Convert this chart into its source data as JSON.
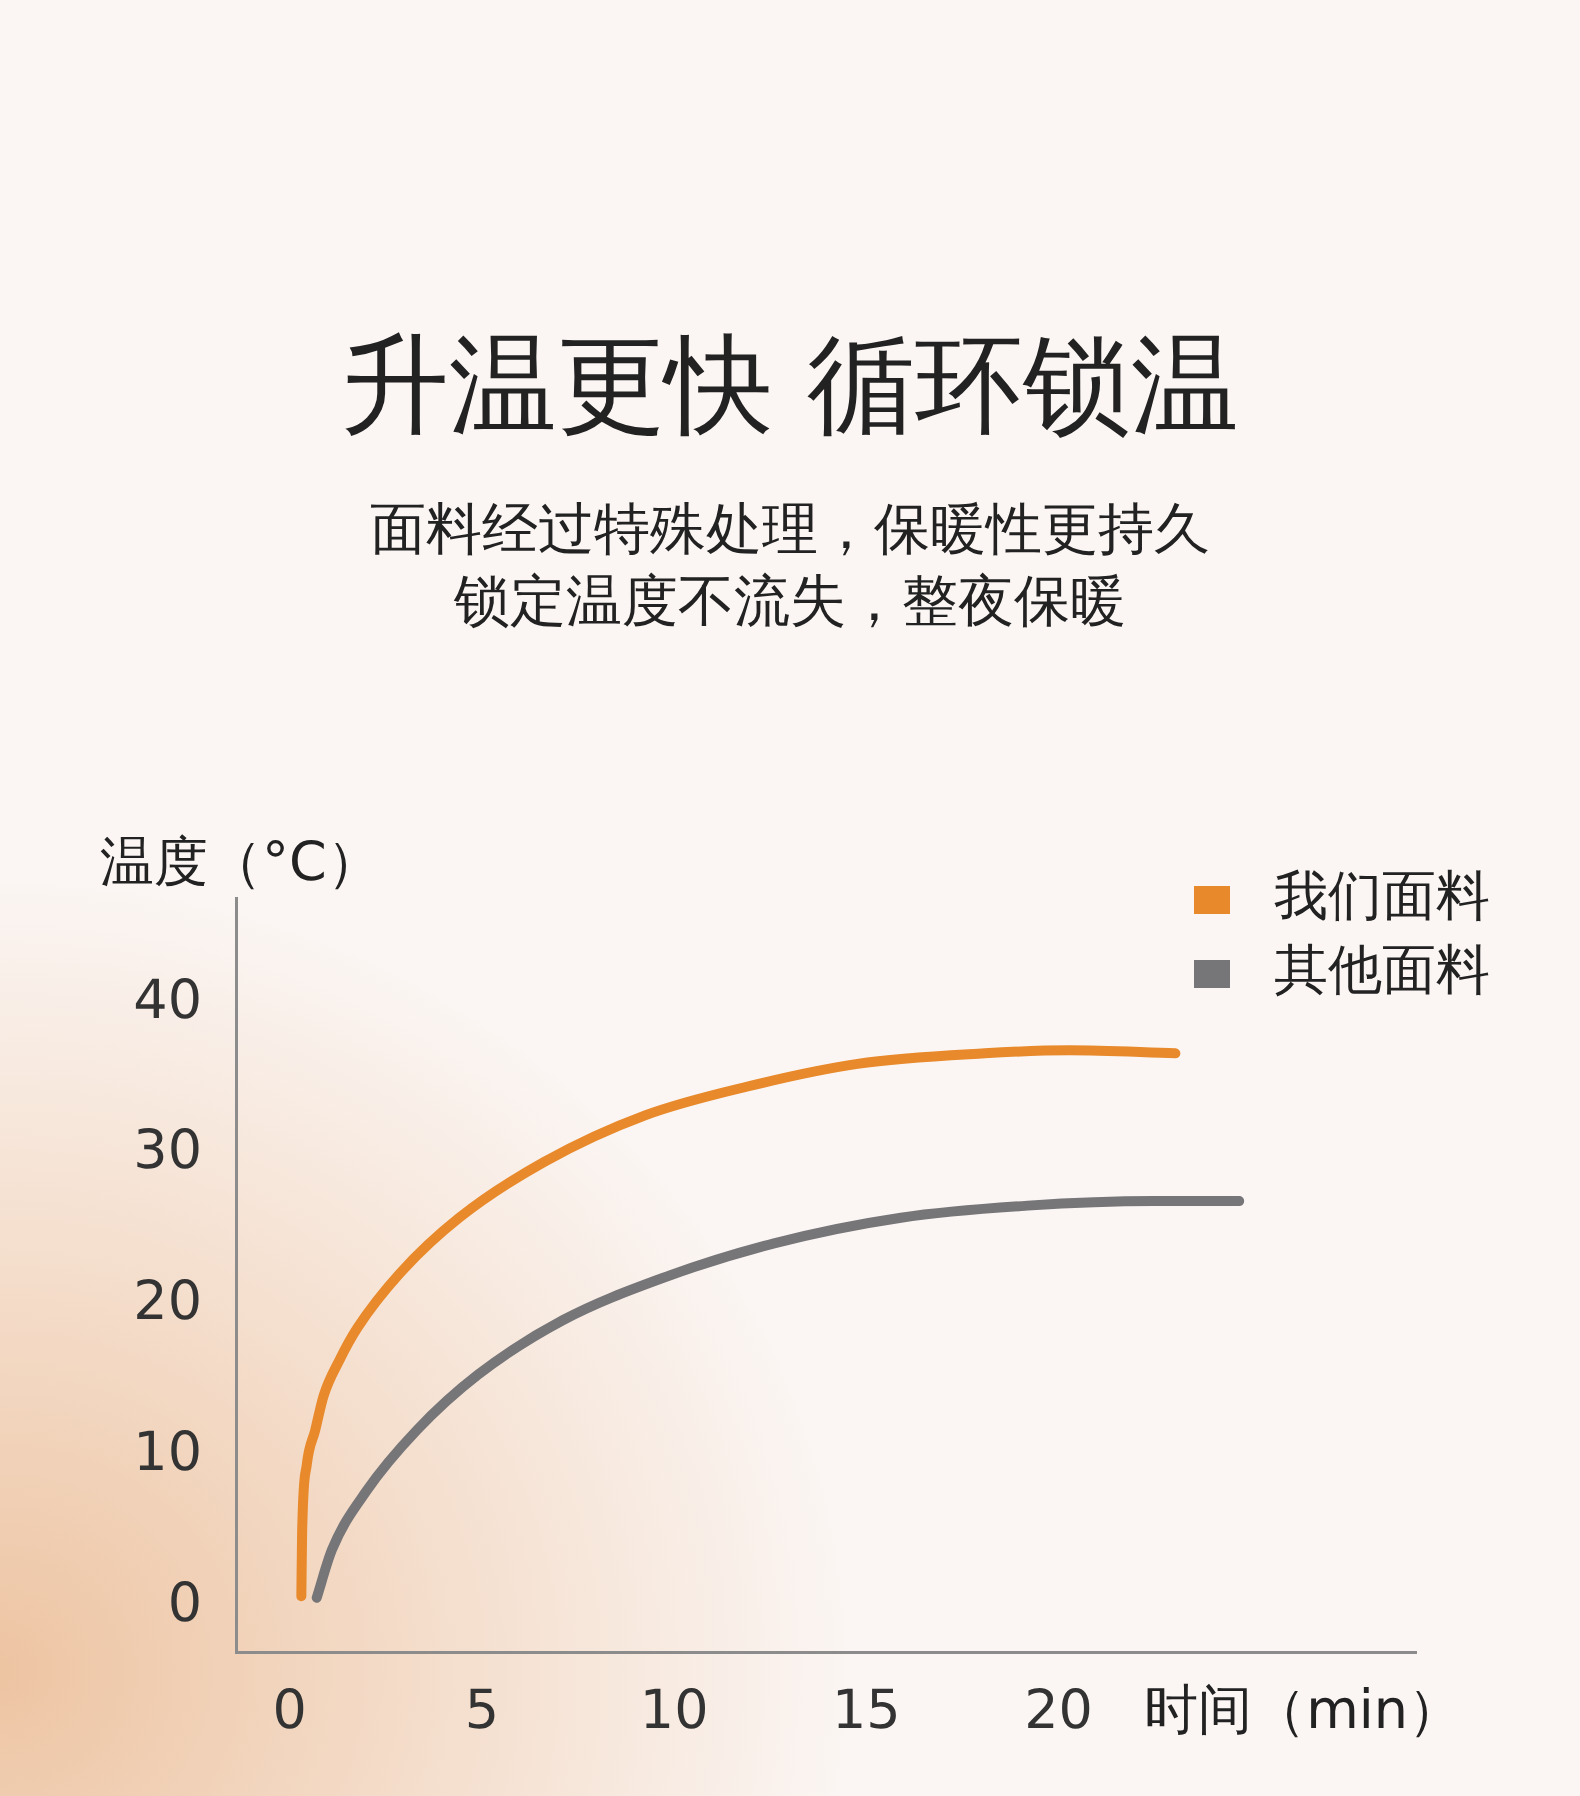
{
  "chart_data": {
    "type": "line",
    "title": "升温更快 循环锁温",
    "subtitle": "面料经过特殊处理，保暖性更持久锁定温度不流失，整夜保暖",
    "xlabel": "时间（min）",
    "ylabel": "温度（°C）",
    "series": [
      {
        "name": "我们面料",
        "color": "#e8892b",
        "x": [
          0.3,
          0.32,
          0.44,
          0.66,
          0.88,
          1.3,
          1.76,
          2.86,
          4.41,
          6.62,
          9.26,
          11.91,
          14.77,
          18.08,
          20.28,
          23.04
        ],
        "values": [
          0.7,
          4.9,
          9.4,
          11.7,
          14.0,
          16.4,
          18.5,
          22.1,
          25.8,
          29.5,
          32.6,
          34.5,
          36.0,
          36.7,
          36.9,
          36.7
        ]
      },
      {
        "name": "其他面料",
        "color": "#767578",
        "x": [
          0.7,
          1.1,
          2.0,
          3.3,
          4.9,
          7.1,
          9.7,
          12.6,
          15.9,
          19.2,
          22.5,
          24.7
        ],
        "values": [
          0.6,
          3.8,
          7.7,
          11.7,
          15.4,
          19.0,
          21.8,
          24.1,
          25.8,
          26.6,
          26.9,
          26.9
        ]
      }
    ],
    "xlim": [
      -1.4,
      29.3
    ],
    "xticks": [
      0,
      5,
      10,
      15,
      20
    ],
    "ylim": [
      -3,
      47
    ],
    "yticks": [
      0,
      10,
      20,
      30,
      40
    ],
    "legend": "top right"
  }
}
